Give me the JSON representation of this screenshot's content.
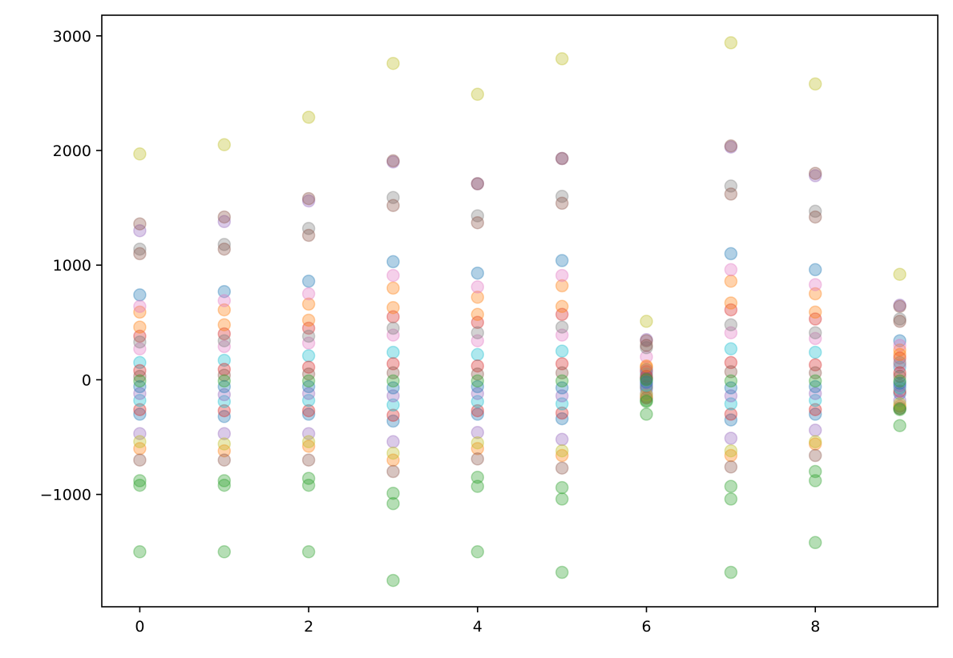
{
  "chart_data": {
    "type": "scatter",
    "title": "",
    "xlabel": "",
    "ylabel": "",
    "xlim": [
      -0.45,
      9.45
    ],
    "ylim": [
      -1980,
      3180
    ],
    "x_ticks": [
      0,
      2,
      4,
      6,
      8
    ],
    "x_tick_labels": [
      "0",
      "2",
      "4",
      "6",
      "8"
    ],
    "y_ticks": [
      -1000,
      0,
      1000,
      2000,
      3000
    ],
    "y_tick_labels": [
      "−1000",
      "0",
      "1000",
      "2000",
      "3000"
    ],
    "grid": false,
    "legend": "none",
    "marker_opacity": 0.35,
    "x": [
      0,
      1,
      2,
      3,
      4,
      5,
      6,
      7,
      8,
      9
    ],
    "series": [
      {
        "color": "#1f77b4",
        "values": [
          740,
          770,
          860,
          1030,
          930,
          1040,
          10,
          1100,
          960,
          340
        ]
      },
      {
        "color": "#ff7f0e",
        "values": [
          590,
          610,
          660,
          800,
          720,
          820,
          110,
          860,
          750,
          260
        ]
      },
      {
        "color": "#2ca02c",
        "values": [
          -1500,
          -1500,
          -1500,
          -1750,
          -1500,
          -1680,
          -300,
          -1680,
          -1420,
          -400
        ]
      },
      {
        "color": "#d62728",
        "values": [
          380,
          400,
          450,
          550,
          500,
          570,
          70,
          610,
          530,
          190
        ]
      },
      {
        "color": "#9467bd",
        "values": [
          1300,
          1380,
          1560,
          1900,
          1710,
          1930,
          350,
          2030,
          1780,
          650
        ]
      },
      {
        "color": "#8c564b",
        "values": [
          1360,
          1420,
          1580,
          1910,
          1710,
          1930,
          340,
          2040,
          1800,
          640
        ]
      },
      {
        "color": "#e377c2",
        "values": [
          640,
          690,
          750,
          910,
          810,
          910,
          200,
          960,
          830,
          300
        ]
      },
      {
        "color": "#7f7f7f",
        "values": [
          1140,
          1180,
          1320,
          1590,
          1430,
          1600,
          280,
          1690,
          1470,
          530
        ]
      },
      {
        "color": "#bcbd22",
        "values": [
          1970,
          2050,
          2290,
          2760,
          2490,
          2800,
          510,
          2940,
          2580,
          920
        ]
      },
      {
        "color": "#17becf",
        "values": [
          150,
          170,
          210,
          240,
          220,
          250,
          50,
          270,
          240,
          110
        ]
      },
      {
        "color": "#1f77b4",
        "values": [
          -300,
          -320,
          -300,
          -360,
          -300,
          -340,
          -80,
          -350,
          -300,
          -120
        ]
      },
      {
        "color": "#ff7f0e",
        "values": [
          -600,
          -620,
          -580,
          -700,
          -600,
          -660,
          -150,
          -660,
          -560,
          -230
        ]
      },
      {
        "color": "#2ca02c",
        "values": [
          -880,
          -880,
          -860,
          -990,
          -850,
          -940,
          -180,
          -930,
          -800,
          -250
        ]
      },
      {
        "color": "#d62728",
        "values": [
          -260,
          -270,
          -270,
          -310,
          -270,
          -290,
          -60,
          -300,
          -260,
          -100
        ]
      },
      {
        "color": "#9467bd",
        "values": [
          -470,
          -470,
          -470,
          -540,
          -460,
          -520,
          -120,
          -510,
          -440,
          -180
        ]
      },
      {
        "color": "#8c564b",
        "values": [
          -700,
          -700,
          -700,
          -800,
          -690,
          -770,
          -160,
          -760,
          -660,
          -250
        ]
      },
      {
        "color": "#e377c2",
        "values": [
          270,
          290,
          320,
          390,
          340,
          390,
          80,
          410,
          360,
          130
        ]
      },
      {
        "color": "#7f7f7f",
        "values": [
          330,
          340,
          380,
          450,
          410,
          460,
          90,
          480,
          410,
          150
        ]
      },
      {
        "color": "#bcbd22",
        "values": [
          -540,
          -560,
          -540,
          -640,
          -550,
          -620,
          -130,
          -620,
          -540,
          -210
        ]
      },
      {
        "color": "#17becf",
        "values": [
          -180,
          -190,
          -180,
          -220,
          -190,
          -210,
          -50,
          -210,
          -180,
          -70
        ]
      },
      {
        "color": "#8c564b",
        "values": [
          1100,
          1140,
          1260,
          1520,
          1370,
          1540,
          300,
          1620,
          1420,
          510
        ]
      },
      {
        "color": "#2ca02c",
        "values": [
          -920,
          -920,
          -920,
          -1080,
          -930,
          -1040,
          -190,
          -1040,
          -880,
          -260
        ]
      },
      {
        "color": "#d62728",
        "values": [
          80,
          90,
          110,
          140,
          120,
          140,
          30,
          150,
          130,
          60
        ]
      },
      {
        "color": "#9467bd",
        "values": [
          -120,
          -130,
          -120,
          -140,
          -120,
          -140,
          -30,
          -140,
          -120,
          -50
        ]
      },
      {
        "color": "#ff7f0e",
        "values": [
          460,
          480,
          520,
          630,
          570,
          640,
          120,
          670,
          590,
          220
        ]
      },
      {
        "color": "#8c564b",
        "values": [
          30,
          40,
          50,
          60,
          50,
          60,
          10,
          70,
          60,
          30
        ]
      },
      {
        "color": "#1f77b4",
        "values": [
          -60,
          -60,
          -60,
          -70,
          -60,
          -70,
          -20,
          -70,
          -60,
          -30
        ]
      },
      {
        "color": "#2ca02c",
        "values": [
          -10,
          -10,
          -10,
          -10,
          -10,
          -10,
          0,
          -10,
          -10,
          -10
        ]
      }
    ]
  }
}
